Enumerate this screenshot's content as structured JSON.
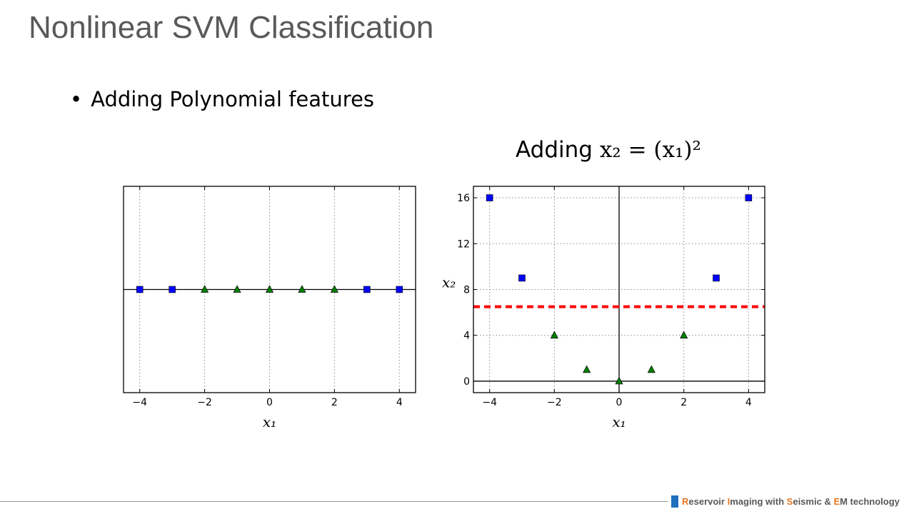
{
  "slide": {
    "title": "Nonlinear SVM Classification",
    "bullet": "Adding Polynomial features",
    "caption_prefix": "Adding ",
    "caption_math": "x₂ = (x₁)²"
  },
  "footer": {
    "segments": [
      {
        "text": "R",
        "accent": true
      },
      {
        "text": "eservoir ",
        "accent": false
      },
      {
        "text": "I",
        "accent": true
      },
      {
        "text": "maging with ",
        "accent": false
      },
      {
        "text": "S",
        "accent": true
      },
      {
        "text": "eismic & ",
        "accent": false
      },
      {
        "text": "E",
        "accent": true
      },
      {
        "text": "M technology",
        "accent": false
      }
    ],
    "accent_color": "#e87722",
    "mark_color": "#1f6fbf"
  },
  "chart_data": [
    {
      "type": "scatter",
      "xlabel": "x₁",
      "ylabel": "",
      "xlim": [
        -4.5,
        4.5
      ],
      "ylim": [
        -1,
        1
      ],
      "xticks": [
        -4,
        -2,
        0,
        2,
        4
      ],
      "xtick_labels": [
        "−4",
        "−2",
        "0",
        "2",
        "4"
      ],
      "yticks": [],
      "grid": true,
      "axis_lines": {
        "y0": true,
        "x0": false
      },
      "series": [
        {
          "marker": "square",
          "color": "#0000ff",
          "points": [
            [
              -4,
              0
            ],
            [
              -3,
              0
            ],
            [
              3,
              0
            ],
            [
              4,
              0
            ]
          ]
        },
        {
          "marker": "triangle",
          "color": "#008000",
          "points": [
            [
              -2,
              0
            ],
            [
              -1,
              0
            ],
            [
              0,
              0
            ],
            [
              1,
              0
            ],
            [
              2,
              0
            ]
          ]
        }
      ],
      "lines": []
    },
    {
      "type": "scatter",
      "xlabel": "x₁",
      "ylabel": "x₂",
      "xlim": [
        -4.5,
        4.5
      ],
      "ylim": [
        -1,
        17
      ],
      "xticks": [
        -4,
        -2,
        0,
        2,
        4
      ],
      "xtick_labels": [
        "−4",
        "−2",
        "0",
        "2",
        "4"
      ],
      "yticks": [
        0,
        4,
        8,
        12,
        16
      ],
      "ytick_labels": [
        "0",
        "4",
        "8",
        "12",
        "16"
      ],
      "grid": true,
      "axis_lines": {
        "y0": true,
        "x0": true
      },
      "series": [
        {
          "marker": "square",
          "color": "#0000ff",
          "points": [
            [
              -4,
              16
            ],
            [
              -3,
              9
            ],
            [
              3,
              9
            ],
            [
              4,
              16
            ]
          ]
        },
        {
          "marker": "triangle",
          "color": "#008000",
          "points": [
            [
              -2,
              4
            ],
            [
              -1,
              1
            ],
            [
              0,
              0
            ],
            [
              1,
              1
            ],
            [
              2,
              4
            ]
          ]
        }
      ],
      "lines": [
        {
          "orientation": "horizontal",
          "y": 6.5,
          "style": "dashed",
          "color": "#ff0000"
        }
      ]
    }
  ]
}
